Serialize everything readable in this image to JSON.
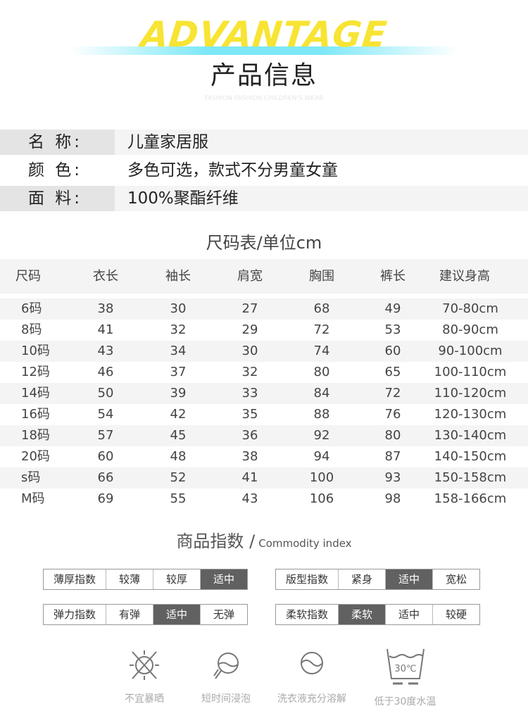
{
  "header": {
    "banner": "ADVANTAGE",
    "title": "产品信息",
    "subtitle": "FASHION FASHION CHILDREN'S WEAR"
  },
  "info": [
    {
      "label": "名 称:",
      "value": "儿童家居服"
    },
    {
      "label": "颜 色:",
      "value": "多色可选，款式不分男童女童"
    },
    {
      "label": "面 料:",
      "value": "100%聚酯纤维"
    }
  ],
  "size_table": {
    "title": "尺码表/单位cm",
    "headers": [
      "尺码",
      "衣长",
      "袖长",
      "肩宽",
      "胸围",
      "裤长",
      "建议身高"
    ],
    "rows": [
      [
        "6码",
        "38",
        "30",
        "27",
        "68",
        "49",
        "70-80cm"
      ],
      [
        "8码",
        "41",
        "32",
        "29",
        "72",
        "53",
        "80-90cm"
      ],
      [
        "10码",
        "43",
        "34",
        "30",
        "74",
        "60",
        "90-100cm"
      ],
      [
        "12码",
        "46",
        "37",
        "32",
        "80",
        "65",
        "100-110cm"
      ],
      [
        "14码",
        "50",
        "39",
        "33",
        "84",
        "72",
        "110-120cm"
      ],
      [
        "16码",
        "54",
        "42",
        "35",
        "88",
        "76",
        "120-130cm"
      ],
      [
        "18码",
        "57",
        "45",
        "36",
        "92",
        "80",
        "130-140cm"
      ],
      [
        "20码",
        "60",
        "48",
        "38",
        "94",
        "87",
        "140-150cm"
      ],
      [
        "s码",
        "66",
        "52",
        "41",
        "100",
        "93",
        "150-158cm"
      ],
      [
        "M码",
        "69",
        "55",
        "43",
        "106",
        "98",
        "158-166cm"
      ]
    ]
  },
  "commodity": {
    "title": "商品指数 /",
    "title_en": "Commodity index",
    "scales": [
      {
        "name": "薄厚指数",
        "options": [
          "较薄",
          "较厚",
          "适中"
        ],
        "selected": 2
      },
      {
        "name": "版型指数",
        "options": [
          "紧身",
          "适中",
          "宽松"
        ],
        "selected": 1
      },
      {
        "name": "弹力指数",
        "options": [
          "有弹",
          "适中",
          "无弹"
        ],
        "selected": 1
      },
      {
        "name": "柔软指数",
        "options": [
          "柔软",
          "适中",
          "较硬"
        ],
        "selected": 0
      }
    ]
  },
  "care": [
    {
      "icon": "no-sun-icon",
      "label": "不宜暴晒"
    },
    {
      "icon": "short-soak-icon",
      "label": "短时间浸泡"
    },
    {
      "icon": "detergent-dissolve-icon",
      "label": "洗衣液充分溶解"
    },
    {
      "icon": "wash-30-icon",
      "label": "低于30度水温",
      "icon_text": "30℃"
    }
  ],
  "colors": {
    "selected": "#616161",
    "banner": "#f7e433",
    "band": "#7ce8f7"
  }
}
